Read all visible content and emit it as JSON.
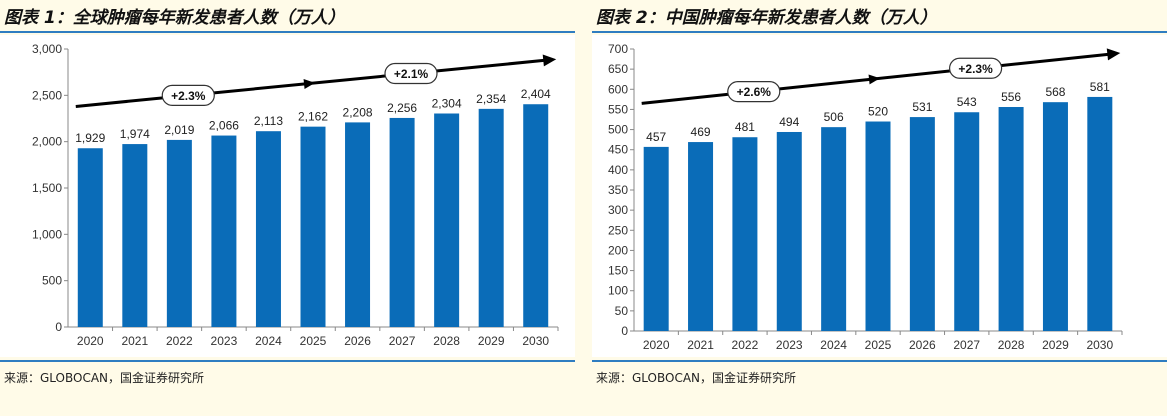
{
  "colors": {
    "bar": "#0a6cb8",
    "arrow": "#000000",
    "frame": "#2f7dc1"
  },
  "charts": [
    {
      "title": "图表 1：全球肿瘤每年新发患者人数（万人）",
      "source": "来源：GLOBOCAN，国金证券研究所",
      "chart_data": {
        "type": "bar",
        "categories": [
          "2020",
          "2021",
          "2022",
          "2023",
          "2024",
          "2025",
          "2026",
          "2027",
          "2028",
          "2029",
          "2030"
        ],
        "values": [
          1929,
          1974,
          2019,
          2066,
          2113,
          2162,
          2208,
          2256,
          2304,
          2354,
          2404
        ],
        "value_labels": [
          "1,929",
          "1,974",
          "2,019",
          "2,066",
          "2,113",
          "2,162",
          "2,208",
          "2,256",
          "2,304",
          "2,354",
          "2,404"
        ],
        "ylim": [
          0,
          3000
        ],
        "yticks": [
          0,
          500,
          1000,
          1500,
          2000,
          2500,
          3000
        ],
        "ytick_labels": [
          "0",
          "500",
          "1,000",
          "1,500",
          "2,000",
          "2,500",
          "3,000"
        ],
        "annotations": [
          {
            "text": "+2.3%",
            "from_category": "2020",
            "to_category": "2025"
          },
          {
            "text": "+2.1%",
            "from_category": "2025",
            "to_category": "2030"
          }
        ],
        "trend_start_value": 2380,
        "trend_end_value": 2890
      }
    },
    {
      "title": "图表 2：中国肿瘤每年新发患者人数（万人）",
      "source": "来源：GLOBOCAN，国金证券研究所",
      "chart_data": {
        "type": "bar",
        "categories": [
          "2020",
          "2021",
          "2022",
          "2023",
          "2024",
          "2025",
          "2026",
          "2027",
          "2028",
          "2029",
          "2030"
        ],
        "values": [
          457,
          469,
          481,
          494,
          506,
          520,
          531,
          543,
          556,
          568,
          581
        ],
        "value_labels": [
          "457",
          "469",
          "481",
          "494",
          "506",
          "520",
          "531",
          "543",
          "556",
          "568",
          "581"
        ],
        "ylim": [
          0,
          700
        ],
        "yticks": [
          0,
          50,
          100,
          150,
          200,
          250,
          300,
          350,
          400,
          450,
          500,
          550,
          600,
          650,
          700
        ],
        "ytick_labels": [
          "0",
          "50",
          "100",
          "150",
          "200",
          "250",
          "300",
          "350",
          "400",
          "450",
          "500",
          "550",
          "600",
          "650",
          "700"
        ],
        "annotations": [
          {
            "text": "+2.6%",
            "from_category": "2020",
            "to_category": "2025"
          },
          {
            "text": "+2.3%",
            "from_category": "2025",
            "to_category": "2030"
          }
        ],
        "trend_start_value": 565,
        "trend_end_value": 690
      }
    }
  ]
}
